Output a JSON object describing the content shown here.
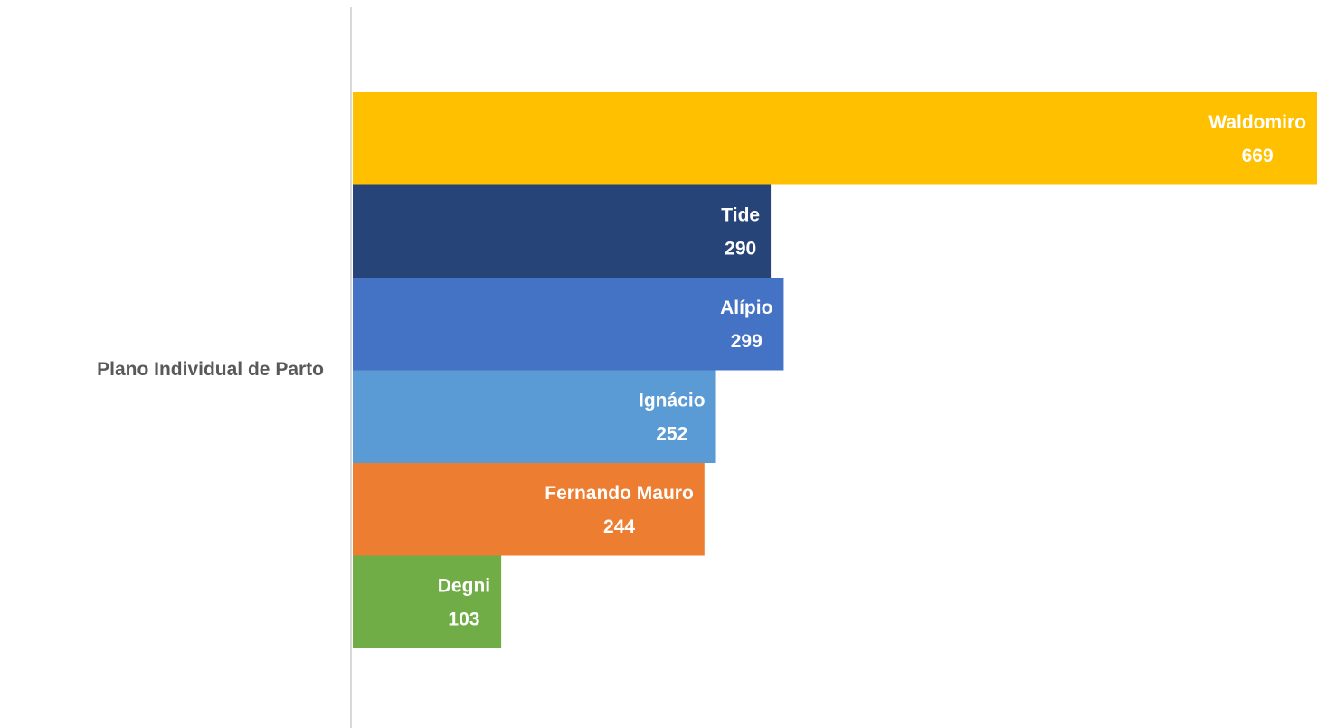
{
  "chart_data": {
    "type": "bar",
    "orientation": "horizontal",
    "categories": [
      "Plano Individual de Parto"
    ],
    "series": [
      {
        "name": "Waldomiro",
        "color": "#FFC000",
        "values": [
          669
        ]
      },
      {
        "name": "Tide",
        "color": "#264478",
        "values": [
          290
        ]
      },
      {
        "name": "Alípio",
        "color": "#4472C4",
        "values": [
          299
        ]
      },
      {
        "name": "Ignácio",
        "color": "#5B9BD5",
        "values": [
          252
        ]
      },
      {
        "name": "Fernando Mauro",
        "color": "#ED7D31",
        "values": [
          244
        ]
      },
      {
        "name": "Degni",
        "color": "#70AD47",
        "values": [
          103
        ]
      }
    ]
  }
}
